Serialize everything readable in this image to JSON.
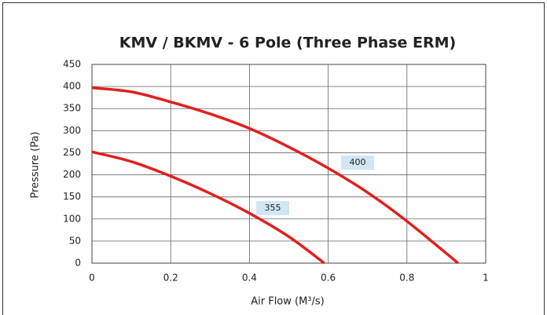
{
  "chart_data": {
    "type": "line",
    "title": "KMV / BKMV  - 6 Pole (Three Phase ERM)",
    "x_label": "Air Flow (M³/s)",
    "y_label": "Pressure (Pa)",
    "xlim": [
      0,
      1
    ],
    "xticks": [
      0,
      0.2,
      0.4,
      0.6,
      0.8,
      1
    ],
    "ylim": [
      0,
      450
    ],
    "yticks": [
      0,
      50,
      100,
      150,
      200,
      250,
      300,
      350,
      400,
      450
    ],
    "grid": true,
    "series": [
      {
        "name": "400",
        "color": "#e02020",
        "x": [
          0,
          0.1,
          0.2,
          0.3,
          0.4,
          0.5,
          0.6,
          0.7,
          0.8,
          0.93
        ],
        "values": [
          397,
          388,
          365,
          338,
          305,
          263,
          215,
          160,
          95,
          0
        ]
      },
      {
        "name": "355",
        "color": "#e02020",
        "x": [
          0,
          0.1,
          0.2,
          0.3,
          0.4,
          0.5,
          0.59
        ],
        "values": [
          252,
          230,
          197,
          158,
          113,
          60,
          0
        ]
      }
    ]
  }
}
